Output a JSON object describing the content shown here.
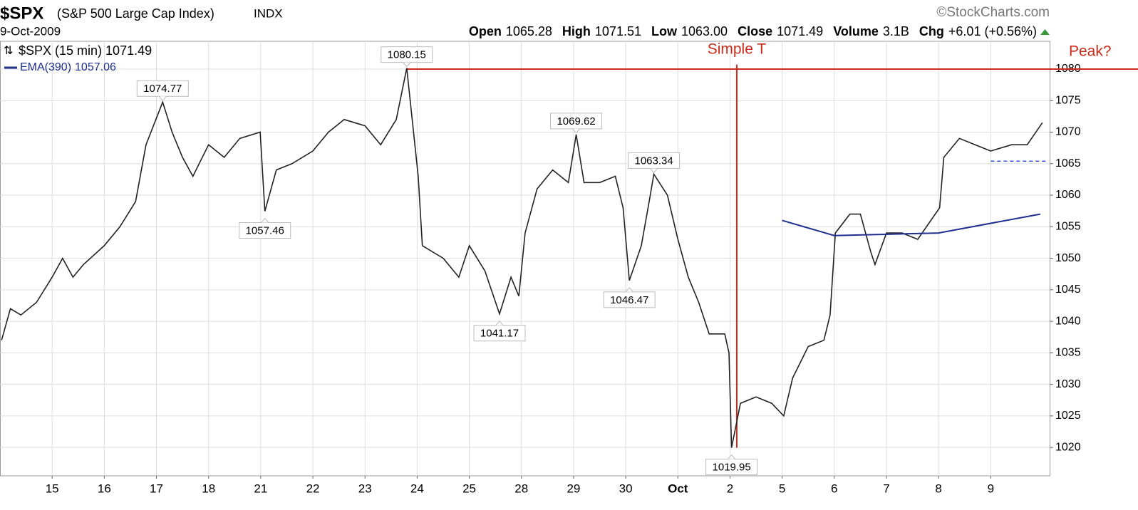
{
  "chart_data": {
    "type": "line",
    "symbol": "$SPX",
    "name": "(S&P 500 Large Cap Index)",
    "exchange": "INDX",
    "date": "9-Oct-2009",
    "source": "©StockCharts.com",
    "quote": [
      {
        "label": "Open",
        "value": "1065.28"
      },
      {
        "label": "High",
        "value": "1071.51"
      },
      {
        "label": "Low",
        "value": "1063.00"
      },
      {
        "label": "Close",
        "value": "1071.49"
      },
      {
        "label": "Volume",
        "value": "3.1B"
      },
      {
        "label": "Chg",
        "value": "+6.01 (+0.56%)"
      }
    ],
    "xlim": [
      -1,
      19.13
    ],
    "ylim": [
      1015.5,
      1084.4
    ],
    "yticks": [
      1020,
      1025,
      1030,
      1035,
      1040,
      1045,
      1050,
      1055,
      1060,
      1065,
      1070,
      1075,
      1080
    ],
    "xticks": [
      {
        "value": 0,
        "label": "15"
      },
      {
        "value": 1,
        "label": "16"
      },
      {
        "value": 2,
        "label": "17"
      },
      {
        "value": 3,
        "label": "18"
      },
      {
        "value": 4,
        "label": "21"
      },
      {
        "value": 5,
        "label": "22"
      },
      {
        "value": 6,
        "label": "23"
      },
      {
        "value": 7,
        "label": "24"
      },
      {
        "value": 8,
        "label": "25"
      },
      {
        "value": 9,
        "label": "28"
      },
      {
        "value": 10,
        "label": "29"
      },
      {
        "value": 11,
        "label": "30"
      },
      {
        "value": 12,
        "label": "Oct"
      },
      {
        "value": 13,
        "label": "2"
      },
      {
        "value": 14,
        "label": "5"
      },
      {
        "value": 15,
        "label": "6"
      },
      {
        "value": 16,
        "label": "7"
      },
      {
        "value": 17,
        "label": "8"
      },
      {
        "value": 18,
        "label": "9"
      }
    ],
    "grid": true,
    "series": [
      {
        "name": "$SPX (15 min)",
        "last": 1071.49,
        "color": "#222222",
        "x": [
          -0.97,
          -0.8,
          -0.6,
          -0.3,
          0.0,
          0.2,
          0.4,
          0.6,
          1.0,
          1.3,
          1.6,
          1.8,
          2.12,
          2.3,
          2.5,
          2.7,
          3.0,
          3.3,
          3.6,
          3.99,
          4.08,
          4.3,
          4.6,
          5.0,
          5.3,
          5.6,
          6.0,
          6.3,
          6.6,
          6.8,
          7.02,
          7.1,
          7.5,
          7.8,
          8.0,
          8.3,
          8.58,
          8.8,
          8.95,
          9.07,
          9.3,
          9.6,
          9.9,
          10.05,
          10.2,
          10.5,
          10.8,
          10.95,
          11.07,
          11.3,
          11.45,
          11.54,
          11.8,
          12.0,
          12.2,
          12.4,
          12.6,
          12.9,
          12.98,
          13.03,
          13.2,
          13.5,
          13.8,
          14.03,
          14.2,
          14.5,
          14.8,
          14.92,
          15.02,
          15.3,
          15.5,
          15.7,
          15.78,
          16.0,
          16.3,
          16.6,
          17.02,
          17.1,
          17.4,
          17.7,
          18.0,
          18.4,
          18.7,
          18.99
        ],
        "values": [
          1037,
          1042,
          1041,
          1043,
          1047,
          1050,
          1047,
          1049,
          1052,
          1055,
          1059,
          1068,
          1074.77,
          1070,
          1066,
          1063,
          1068,
          1066,
          1069,
          1070,
          1057.46,
          1064,
          1065,
          1067,
          1070,
          1072,
          1071,
          1068,
          1072,
          1080.15,
          1063,
          1052,
          1050,
          1047,
          1052,
          1048,
          1041.17,
          1047,
          1044,
          1054,
          1061,
          1064,
          1062,
          1069.62,
          1062,
          1062,
          1063,
          1058,
          1046.47,
          1052,
          1059,
          1063.34,
          1060,
          1053,
          1047,
          1043,
          1038,
          1038,
          1035,
          1019.95,
          1027,
          1028,
          1027,
          1025,
          1031,
          1036,
          1037,
          1041,
          1054,
          1057,
          1057,
          1051,
          1049,
          1054,
          1054,
          1053,
          1058,
          1066,
          1069,
          1068,
          1067,
          1068,
          1068,
          1071.49
        ]
      },
      {
        "name": "EMA(390)",
        "last": 1057.06,
        "color": "#1f2f8f",
        "x": [
          14.0,
          15.0,
          17.0,
          18.95
        ],
        "values": [
          1056,
          1053.6,
          1054,
          1057
        ]
      }
    ],
    "labels": [
      {
        "x": 2.12,
        "value": 1074.77,
        "position": "above"
      },
      {
        "x": 4.08,
        "value": 1057.46,
        "position": "below"
      },
      {
        "x": 6.8,
        "value": 1080.15,
        "position": "above"
      },
      {
        "x": 8.58,
        "value": 1041.17,
        "position": "below"
      },
      {
        "x": 10.05,
        "value": 1069.62,
        "position": "above"
      },
      {
        "x": 11.07,
        "value": 1046.47,
        "position": "below"
      },
      {
        "x": 11.54,
        "value": 1063.34,
        "position": "above"
      },
      {
        "x": 13.03,
        "value": 1019.95,
        "position": "below"
      }
    ],
    "peak_line": {
      "label": "Peak?",
      "y": 1080,
      "x": 6.8,
      "color": "#cc2a1a"
    },
    "t_line": {
      "label": "Simple T",
      "x": 13.13,
      "ylim": [
        1019.95,
        1080.7
      ],
      "color": "#cc2a1a"
    },
    "support_line": {
      "y": 1065.4,
      "xlim": [
        18.0,
        19.1
      ],
      "color": "#3355dd"
    }
  }
}
